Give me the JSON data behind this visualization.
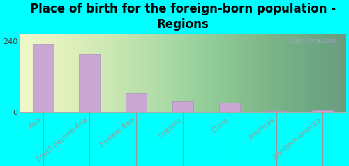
{
  "title": "Place of birth for the foreign-born population -\nRegions",
  "categories": [
    "Asia",
    "South Eastern Asia",
    "Eastern Asia",
    "Oceania",
    "China",
    "Americas",
    "Northern America"
  ],
  "values": [
    232,
    195,
    65,
    38,
    33,
    5,
    7
  ],
  "bar_color": "#c9a8d4",
  "bar_edge_color": "#b090bf",
  "background_color": "#00ffff",
  "yticks": [
    0,
    240
  ],
  "ylim": [
    0,
    265
  ],
  "watermark": "City-Data.com",
  "title_fontsize": 12,
  "tick_label_fontsize": 7,
  "ytick_fontsize": 8
}
